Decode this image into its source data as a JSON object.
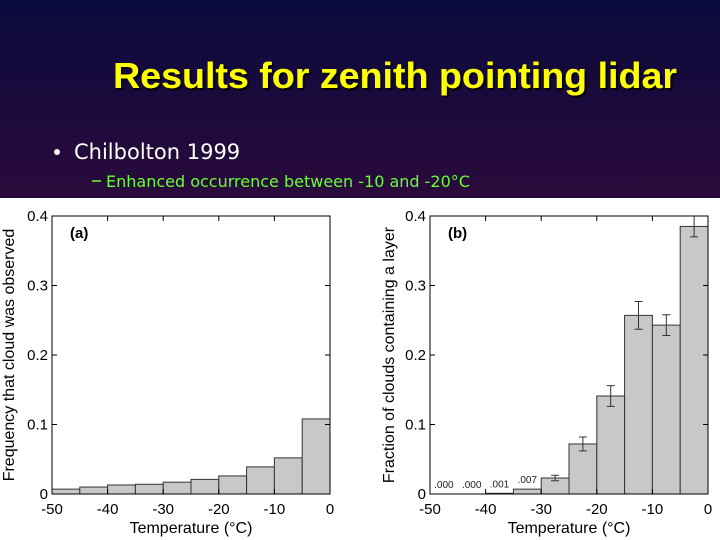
{
  "title": "Results for zenith pointing lidar",
  "bullets": [
    {
      "text": "Chilbolton 1999",
      "sub": [
        "Enhanced occurrence between -10 and -20°C"
      ]
    }
  ],
  "chart_data": [
    {
      "type": "histogram",
      "panel_label": "(a)",
      "xlabel": "Temperature (°C)",
      "ylabel": "Frequency that cloud was observed",
      "bins": [
        -50,
        -45,
        -40,
        -35,
        -30,
        -25,
        -20,
        -15,
        -10,
        -5,
        0
      ],
      "values": [
        0.007,
        0.01,
        0.013,
        0.014,
        0.017,
        0.021,
        0.026,
        0.039,
        0.052,
        0.108
      ],
      "color": "#c8c8c8",
      "xlim": [
        -50,
        0
      ],
      "ylim": [
        0,
        0.4
      ],
      "xticks": [
        -50,
        -40,
        -30,
        -20,
        -10,
        0
      ],
      "yticks": [
        0,
        0.1,
        0.2,
        0.3,
        0.4
      ]
    },
    {
      "type": "histogram",
      "panel_label": "(b)",
      "xlabel": "Temperature (°C)",
      "ylabel": "Fraction of clouds containing a layer",
      "bins": [
        -50,
        -45,
        -40,
        -35,
        -30,
        -25,
        -20,
        -15,
        -10,
        -5,
        0
      ],
      "values": [
        0.0,
        0.0,
        0.001,
        0.007,
        0.023,
        0.072,
        0.141,
        0.257,
        0.243,
        0.385
      ],
      "value_labels": [
        ".000",
        ".000",
        ".001",
        ".007",
        null,
        null,
        null,
        null,
        null,
        null
      ],
      "errors": [
        null,
        null,
        null,
        null,
        0.004,
        0.01,
        0.015,
        0.02,
        0.015,
        0.015
      ],
      "color": "#c8c8c8",
      "xlim": [
        -50,
        0
      ],
      "ylim": [
        0,
        0.4
      ],
      "xticks": [
        -50,
        -40,
        -30,
        -20,
        -10,
        0
      ],
      "yticks": [
        0,
        0.1,
        0.2,
        0.3,
        0.4
      ]
    }
  ]
}
